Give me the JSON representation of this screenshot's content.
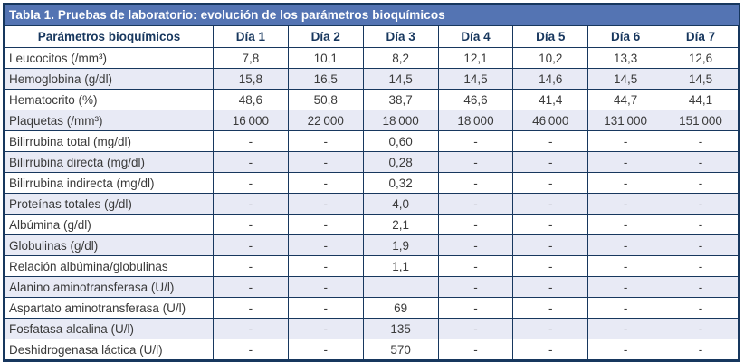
{
  "table": {
    "title": "Tabla 1. Pruebas de laboratorio: evolución de los parámetros bioquímicos",
    "columns": [
      "Parámetros bioquímicos",
      "Día 1",
      "Día 2",
      "Día 3",
      "Día 4",
      "Día 5",
      "Día 6",
      "Día 7"
    ],
    "rows": [
      {
        "label": "Leucocitos (/mm³)",
        "values": [
          "7,8",
          "10,1",
          "8,2",
          "12,1",
          "10,2",
          "13,3",
          "12,6"
        ]
      },
      {
        "label": "Hemoglobina (g/dl)",
        "values": [
          "15,8",
          "16,5",
          "14,5",
          "14,5",
          "14,6",
          "14,5",
          "14,5"
        ]
      },
      {
        "label": "Hematocrito (%)",
        "values": [
          "48,6",
          "50,8",
          "38,7",
          "46,6",
          "41,4",
          "44,7",
          "44,1"
        ]
      },
      {
        "label": "Plaquetas (/mm³)",
        "values": [
          "16 000",
          "22 000",
          "18 000",
          "18 000",
          "46 000",
          "131 000",
          "151 000"
        ]
      },
      {
        "label": "Bilirrubina total (mg/dl)",
        "values": [
          "-",
          "-",
          "0,60",
          "-",
          "-",
          "-",
          "-"
        ]
      },
      {
        "label": "Bilirrubina directa (mg/dl)",
        "values": [
          "-",
          "-",
          "0,28",
          "-",
          "-",
          "-",
          "-"
        ]
      },
      {
        "label": "Bilirrubina indirecta (mg/dl)",
        "values": [
          "-",
          "-",
          "0,32",
          "-",
          "-",
          "-",
          "-"
        ]
      },
      {
        "label": "Proteínas totales (g/dl)",
        "values": [
          "-",
          "-",
          "4,0",
          "-",
          "-",
          "-",
          "-"
        ]
      },
      {
        "label": "Albúmina (g/dl)",
        "values": [
          "-",
          "-",
          "2,1",
          "-",
          "-",
          "-",
          "-"
        ]
      },
      {
        "label": "Globulinas (g/dl)",
        "values": [
          "-",
          "-",
          "1,9",
          "-",
          "-",
          "-",
          "-"
        ]
      },
      {
        "label": "Relación albúmina/globulinas",
        "values": [
          "-",
          "-",
          "1,1",
          "-",
          "-",
          "-",
          "-"
        ]
      },
      {
        "label": "Alanino aminotransferasa (U/l)",
        "values": [
          "-",
          "-",
          "",
          "-",
          "-",
          "-",
          "-"
        ]
      },
      {
        "label": "Aspartato aminotransferasa (U/l)",
        "values": [
          "-",
          "-",
          "69",
          "-",
          "-",
          "-",
          "-"
        ]
      },
      {
        "label": "Fosfatasa alcalina (U/l)",
        "values": [
          "-",
          "-",
          "135",
          "-",
          "-",
          "-",
          "-"
        ]
      },
      {
        "label": "Deshidrogenasa láctica (U/l)",
        "values": [
          "-",
          "-",
          "570",
          "-",
          "-",
          "-",
          "-"
        ]
      }
    ]
  },
  "colors": {
    "title_bg": "#5474b3",
    "border": "#17375e",
    "header_text": "#17375e",
    "row_alt_bg": "#e8eaf5",
    "text": "#3a3a3a"
  }
}
